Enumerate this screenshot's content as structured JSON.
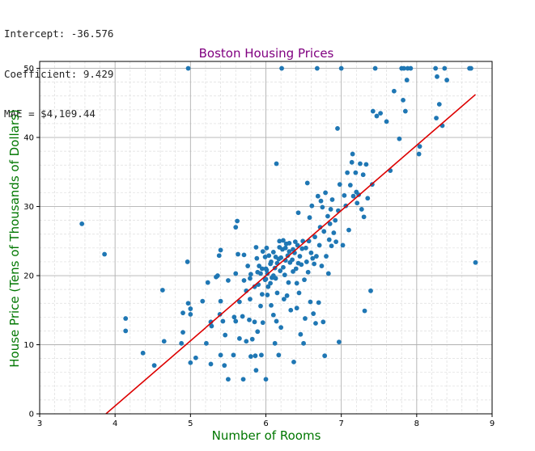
{
  "stats": {
    "intercept": "Intercept: -36.576",
    "coefficient": "Coefficient: 9.429",
    "mae": "MAE = $4,109.44"
  },
  "colors": {
    "points": "#1f77b4",
    "regression_line": "#dd0000",
    "title": "#800080",
    "axis_labels": "#007700"
  },
  "chart_data": {
    "type": "scatter",
    "title": "Boston Housing Prices",
    "xlabel": "Number of Rooms",
    "ylabel": "House Price (Tens of Thousands of Dollars)",
    "xlim": [
      3,
      9
    ],
    "ylim": [
      0,
      51
    ],
    "xticks": [
      3,
      4,
      5,
      6,
      7,
      8,
      9
    ],
    "yticks": [
      0,
      10,
      20,
      30,
      40,
      50
    ],
    "grid": true,
    "minor_grid": true,
    "regression_line": {
      "intercept": -36.576,
      "slope": 9.429,
      "x_range": [
        3.88,
        8.78
      ]
    },
    "points": [
      [
        3.56,
        27.5
      ],
      [
        3.86,
        23.1
      ],
      [
        4.14,
        13.8
      ],
      [
        4.14,
        12.0
      ],
      [
        4.37,
        8.8
      ],
      [
        4.52,
        7.0
      ],
      [
        4.63,
        17.9
      ],
      [
        4.65,
        10.5
      ],
      [
        4.88,
        10.2
      ],
      [
        4.9,
        14.6
      ],
      [
        4.9,
        11.8
      ],
      [
        4.96,
        22.0
      ],
      [
        4.97,
        16.0
      ],
      [
        4.97,
        50.0
      ],
      [
        5.0,
        14.4
      ],
      [
        5.0,
        15.2
      ],
      [
        5.0,
        7.4
      ],
      [
        5.07,
        8.1
      ],
      [
        5.16,
        16.3
      ],
      [
        5.21,
        10.2
      ],
      [
        5.23,
        19.0
      ],
      [
        5.27,
        13.3
      ],
      [
        5.27,
        7.2
      ],
      [
        5.28,
        12.7
      ],
      [
        5.34,
        19.8
      ],
      [
        5.36,
        20.0
      ],
      [
        5.38,
        22.9
      ],
      [
        5.39,
        14.4
      ],
      [
        5.4,
        23.7
      ],
      [
        5.4,
        8.5
      ],
      [
        5.4,
        16.3
      ],
      [
        5.43,
        13.4
      ],
      [
        5.45,
        7.0
      ],
      [
        5.46,
        11.4
      ],
      [
        5.5,
        5.0
      ],
      [
        5.5,
        19.3
      ],
      [
        5.57,
        8.5
      ],
      [
        5.58,
        14.0
      ],
      [
        5.6,
        13.4
      ],
      [
        5.6,
        27.0
      ],
      [
        5.6,
        20.3
      ],
      [
        5.62,
        27.9
      ],
      [
        5.63,
        23.1
      ],
      [
        5.65,
        16.2
      ],
      [
        5.65,
        10.9
      ],
      [
        5.69,
        14.1
      ],
      [
        5.7,
        5.0
      ],
      [
        5.71,
        23.0
      ],
      [
        5.71,
        19.3
      ],
      [
        5.74,
        10.5
      ],
      [
        5.74,
        17.8
      ],
      [
        5.76,
        21.4
      ],
      [
        5.78,
        13.6
      ],
      [
        5.79,
        16.6
      ],
      [
        5.79,
        19.6
      ],
      [
        5.8,
        8.3
      ],
      [
        5.8,
        20.2
      ],
      [
        5.82,
        10.8
      ],
      [
        5.85,
        18.4
      ],
      [
        5.85,
        13.3
      ],
      [
        5.86,
        8.4
      ],
      [
        5.87,
        24.1
      ],
      [
        5.87,
        6.3
      ],
      [
        5.88,
        22.5
      ],
      [
        5.89,
        20.5
      ],
      [
        5.89,
        11.9
      ],
      [
        5.9,
        18.7
      ],
      [
        5.93,
        20.3
      ],
      [
        5.93,
        15.6
      ],
      [
        5.94,
        8.5
      ],
      [
        5.95,
        17.3
      ],
      [
        5.96,
        23.5
      ],
      [
        5.96,
        13.2
      ],
      [
        5.99,
        22.7
      ],
      [
        6.0,
        21.0
      ],
      [
        6.0,
        19.5
      ],
      [
        6.0,
        5.0
      ],
      [
        6.01,
        24.0
      ],
      [
        6.02,
        20.3
      ],
      [
        6.02,
        17.2
      ],
      [
        6.03,
        18.4
      ],
      [
        6.04,
        22.9
      ],
      [
        6.06,
        18.9
      ],
      [
        6.06,
        21.7
      ],
      [
        6.07,
        15.7
      ],
      [
        6.07,
        22.0
      ],
      [
        6.1,
        20.0
      ],
      [
        6.1,
        14.3
      ],
      [
        6.1,
        23.4
      ],
      [
        6.12,
        21.1
      ],
      [
        6.12,
        10.2
      ],
      [
        6.13,
        19.6
      ],
      [
        6.14,
        36.2
      ],
      [
        6.14,
        13.4
      ],
      [
        6.15,
        21.8
      ],
      [
        6.15,
        17.5
      ],
      [
        6.17,
        22.4
      ],
      [
        6.17,
        8.5
      ],
      [
        6.18,
        24.1
      ],
      [
        6.18,
        25.0
      ],
      [
        6.19,
        20.7
      ],
      [
        6.2,
        22.6
      ],
      [
        6.2,
        12.5
      ],
      [
        6.21,
        50.0
      ],
      [
        6.22,
        23.8
      ],
      [
        6.23,
        21.2
      ],
      [
        6.24,
        16.6
      ],
      [
        6.25,
        20.1
      ],
      [
        6.26,
        22.2
      ],
      [
        6.27,
        24.6
      ],
      [
        6.28,
        17.1
      ],
      [
        6.29,
        22.9
      ],
      [
        6.3,
        19.0
      ],
      [
        6.31,
        24.7
      ],
      [
        6.32,
        21.9
      ],
      [
        6.33,
        15.0
      ],
      [
        6.35,
        22.3
      ],
      [
        6.36,
        20.6
      ],
      [
        6.37,
        7.5
      ],
      [
        6.38,
        23.3
      ],
      [
        6.39,
        24.9
      ],
      [
        6.4,
        21.0
      ],
      [
        6.41,
        18.9
      ],
      [
        6.41,
        15.3
      ],
      [
        6.42,
        24.4
      ],
      [
        6.43,
        29.1
      ],
      [
        6.44,
        17.5
      ],
      [
        6.45,
        22.8
      ],
      [
        6.46,
        11.5
      ],
      [
        6.47,
        21.6
      ],
      [
        6.48,
        23.9
      ],
      [
        6.49,
        25.0
      ],
      [
        6.5,
        10.2
      ],
      [
        6.51,
        19.4
      ],
      [
        6.52,
        13.8
      ],
      [
        6.53,
        24.0
      ],
      [
        6.54,
        22.0
      ],
      [
        6.55,
        33.4
      ],
      [
        6.56,
        20.5
      ],
      [
        6.57,
        25.0
      ],
      [
        6.58,
        28.4
      ],
      [
        6.59,
        16.2
      ],
      [
        6.6,
        23.3
      ],
      [
        6.61,
        30.1
      ],
      [
        6.62,
        22.5
      ],
      [
        6.63,
        14.5
      ],
      [
        6.64,
        21.7
      ],
      [
        6.65,
        25.6
      ],
      [
        6.66,
        13.1
      ],
      [
        6.67,
        22.8
      ],
      [
        6.68,
        50.0
      ],
      [
        6.69,
        31.5
      ],
      [
        6.7,
        16.1
      ],
      [
        6.71,
        24.4
      ],
      [
        6.72,
        27.0
      ],
      [
        6.73,
        30.8
      ],
      [
        6.74,
        21.4
      ],
      [
        6.75,
        29.9
      ],
      [
        6.76,
        13.3
      ],
      [
        6.77,
        26.4
      ],
      [
        6.78,
        8.4
      ],
      [
        6.79,
        32.0
      ],
      [
        6.8,
        22.8
      ],
      [
        6.82,
        28.6
      ],
      [
        6.83,
        20.3
      ],
      [
        6.84,
        25.2
      ],
      [
        6.85,
        27.5
      ],
      [
        6.86,
        29.6
      ],
      [
        6.87,
        24.3
      ],
      [
        6.88,
        31.0
      ],
      [
        6.9,
        26.2
      ],
      [
        6.92,
        28.0
      ],
      [
        6.93,
        24.9
      ],
      [
        6.95,
        41.3
      ],
      [
        6.96,
        29.4
      ],
      [
        6.97,
        10.4
      ],
      [
        6.98,
        33.2
      ],
      [
        7.0,
        50.0
      ],
      [
        7.02,
        24.4
      ],
      [
        7.04,
        31.6
      ],
      [
        7.06,
        30.1
      ],
      [
        7.08,
        34.9
      ],
      [
        7.1,
        26.6
      ],
      [
        7.12,
        33.1
      ],
      [
        7.14,
        36.4
      ],
      [
        7.15,
        37.6
      ],
      [
        7.16,
        31.5
      ],
      [
        7.19,
        34.9
      ],
      [
        7.2,
        32.1
      ],
      [
        7.21,
        30.5
      ],
      [
        7.23,
        31.7
      ],
      [
        7.25,
        36.2
      ],
      [
        7.27,
        29.6
      ],
      [
        7.29,
        34.6
      ],
      [
        7.3,
        28.5
      ],
      [
        7.31,
        14.9
      ],
      [
        7.33,
        36.1
      ],
      [
        7.35,
        31.2
      ],
      [
        7.39,
        17.8
      ],
      [
        7.41,
        33.2
      ],
      [
        7.42,
        43.8
      ],
      [
        7.45,
        50.0
      ],
      [
        7.47,
        43.1
      ],
      [
        7.52,
        43.5
      ],
      [
        7.6,
        42.3
      ],
      [
        7.65,
        35.2
      ],
      [
        7.7,
        46.7
      ],
      [
        7.77,
        39.8
      ],
      [
        7.8,
        50.0
      ],
      [
        7.82,
        45.4
      ],
      [
        7.83,
        50.0
      ],
      [
        7.85,
        43.8
      ],
      [
        7.87,
        48.3
      ],
      [
        7.88,
        50.0
      ],
      [
        7.92,
        50.0
      ],
      [
        8.03,
        37.6
      ],
      [
        8.04,
        38.7
      ],
      [
        8.25,
        50.0
      ],
      [
        8.26,
        42.8
      ],
      [
        8.27,
        48.8
      ],
      [
        8.3,
        44.8
      ],
      [
        8.34,
        41.7
      ],
      [
        8.37,
        50.0
      ],
      [
        8.4,
        48.3
      ],
      [
        8.7,
        50.0
      ],
      [
        8.72,
        50.0
      ],
      [
        8.78,
        21.9
      ],
      [
        6.26,
        24.0
      ],
      [
        5.95,
        21.0
      ],
      [
        6.31,
        23.5
      ],
      [
        6.13,
        22.7
      ],
      [
        5.99,
        19.4
      ],
      [
        6.43,
        21.8
      ],
      [
        6.08,
        19.7
      ],
      [
        6.23,
        25.1
      ],
      [
        5.91,
        21.4
      ],
      [
        6.36,
        23.8
      ],
      [
        6.01,
        20.8
      ]
    ]
  }
}
